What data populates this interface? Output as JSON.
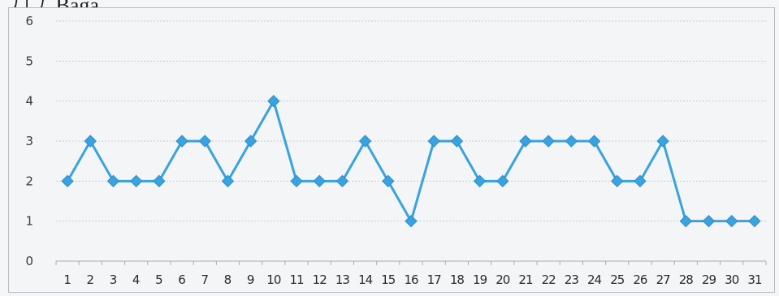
{
  "header": {
    "partial_text": "ﾌｺ,ﾌ, Baga"
  },
  "chart_data": {
    "type": "line",
    "title": "",
    "xlabel": "",
    "ylabel": "",
    "categories": [
      "1",
      "2",
      "3",
      "4",
      "5",
      "6",
      "7",
      "8",
      "9",
      "10",
      "11",
      "12",
      "13",
      "14",
      "15",
      "16",
      "17",
      "18",
      "19",
      "20",
      "21",
      "22",
      "23",
      "24",
      "25",
      "26",
      "27",
      "28",
      "29",
      "30",
      "31"
    ],
    "series": [
      {
        "values": [
          2,
          3,
          2,
          2,
          2,
          3,
          3,
          2,
          3,
          4,
          2,
          2,
          2,
          3,
          2,
          1,
          3,
          3,
          2,
          2,
          3,
          3,
          3,
          3,
          2,
          2,
          3,
          1,
          1,
          1,
          1
        ]
      }
    ],
    "ylim": [
      0,
      6
    ],
    "yticks": [
      0,
      1,
      2,
      3,
      4,
      5,
      6
    ],
    "grid": true,
    "legend": "none",
    "line_color": "#3aa3de",
    "marker": "diamond"
  }
}
